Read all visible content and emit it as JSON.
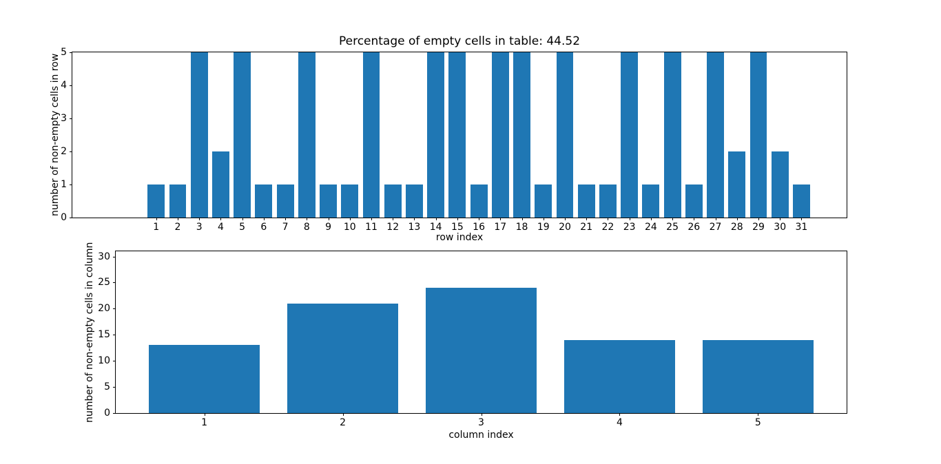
{
  "figure": {
    "background": "#ffffff",
    "text_color": "#000000"
  },
  "chart_data": [
    {
      "type": "bar",
      "title": "Percentage of empty cells in table: 44.52",
      "xlabel": "row index",
      "ylabel": "number of non-empty cells in row",
      "x": [
        1,
        2,
        3,
        4,
        5,
        6,
        7,
        8,
        9,
        10,
        11,
        12,
        13,
        14,
        15,
        16,
        17,
        18,
        19,
        20,
        21,
        22,
        23,
        24,
        25,
        26,
        27,
        28,
        29,
        30,
        31
      ],
      "values": [
        1,
        1,
        5,
        2,
        5,
        1,
        1,
        5,
        1,
        1,
        5,
        1,
        1,
        5,
        5,
        1,
        5,
        5,
        1,
        5,
        1,
        1,
        5,
        1,
        5,
        1,
        5,
        2,
        5,
        2,
        1
      ],
      "xlim": [
        -2.9,
        33.1
      ],
      "ylim": [
        0,
        5
      ],
      "yticks": [
        0,
        1,
        2,
        3,
        4,
        5
      ],
      "bar_width": 0.8,
      "bar_color": "#1f77b4",
      "grid": false,
      "legend": null
    },
    {
      "type": "bar",
      "title": "",
      "xlabel": "column index",
      "ylabel": "number of non-empty cells in column",
      "x": [
        1,
        2,
        3,
        4,
        5
      ],
      "values": [
        13,
        21,
        24,
        14,
        14
      ],
      "xlim": [
        0.36,
        5.64
      ],
      "ylim": [
        0,
        31
      ],
      "yticks": [
        0,
        5,
        10,
        15,
        20,
        25,
        30
      ],
      "bar_width": 0.8,
      "bar_color": "#1f77b4",
      "grid": false,
      "legend": null
    }
  ]
}
